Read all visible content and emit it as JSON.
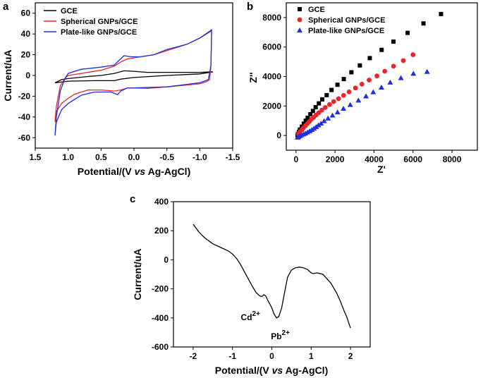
{
  "chart_data": [
    {
      "panel": "a",
      "type": "line",
      "xlabel_pre": "Potential/(V ",
      "xlabel_vs": "vs",
      "xlabel_post": " Ag-AgCl)",
      "ylabel": "Current/uA",
      "xlim": [
        1.5,
        -1.5
      ],
      "ylim": [
        -70,
        70
      ],
      "xticks": [
        1.5,
        1.0,
        0.5,
        0.0,
        -0.5,
        -1.0,
        -1.5
      ],
      "xtick_labels": [
        "1.5",
        "1.0",
        "0.5",
        "0.0",
        "-0.5",
        "-1.0",
        "-1.5"
      ],
      "yticks": [
        -60,
        -40,
        -20,
        0,
        20,
        40,
        60
      ],
      "legend": "top-left",
      "grid": false,
      "series": [
        {
          "name": "GCE",
          "color": "#000000",
          "points": [
            [
              1.2,
              -7
            ],
            [
              1.1,
              -4
            ],
            [
              1.0,
              -3
            ],
            [
              0.7,
              -1
            ],
            [
              0.5,
              0
            ],
            [
              0.3,
              2
            ],
            [
              0.15,
              4.5
            ],
            [
              0.0,
              4
            ],
            [
              -0.2,
              3
            ],
            [
              -0.5,
              3
            ],
            [
              -1.0,
              3
            ],
            [
              -1.2,
              3.5
            ],
            [
              -1.0,
              1.5
            ],
            [
              -0.5,
              0
            ],
            [
              0.0,
              -2
            ],
            [
              0.2,
              -3.5
            ],
            [
              0.3,
              -5
            ],
            [
              0.6,
              -5
            ],
            [
              1.0,
              -5.5
            ],
            [
              1.2,
              -7
            ]
          ]
        },
        {
          "name": "Spherical GNPs/GCE",
          "color": "#e8252b",
          "points": [
            [
              1.2,
              -45
            ],
            [
              1.18,
              -30
            ],
            [
              1.12,
              -10
            ],
            [
              1.05,
              -3
            ],
            [
              1.0,
              0
            ],
            [
              0.8,
              2
            ],
            [
              0.5,
              5
            ],
            [
              0.3,
              9
            ],
            [
              0.2,
              13
            ],
            [
              0.1,
              16
            ],
            [
              0.0,
              17
            ],
            [
              -0.2,
              19
            ],
            [
              -0.3,
              20
            ],
            [
              -0.5,
              24
            ],
            [
              -0.8,
              30
            ],
            [
              -1.0,
              36
            ],
            [
              -1.18,
              43
            ],
            [
              -1.17,
              10
            ],
            [
              -1.15,
              -4
            ],
            [
              -1.1,
              -6
            ],
            [
              -1.0,
              -8
            ],
            [
              -0.5,
              -11
            ],
            [
              -0.2,
              -12.5
            ],
            [
              0.0,
              -12
            ],
            [
              0.1,
              -12
            ],
            [
              0.2,
              -14
            ],
            [
              0.3,
              -15
            ],
            [
              0.5,
              -14
            ],
            [
              0.7,
              -14
            ],
            [
              0.9,
              -18
            ],
            [
              1.0,
              -22
            ],
            [
              1.1,
              -27
            ],
            [
              1.18,
              -35
            ],
            [
              1.2,
              -45
            ]
          ]
        },
        {
          "name": "Plate-like GNPs/GCE",
          "color": "#1f2ee0",
          "points": [
            [
              1.2,
              -58
            ],
            [
              1.18,
              -40
            ],
            [
              1.12,
              -15
            ],
            [
              1.05,
              -3
            ],
            [
              1.0,
              2
            ],
            [
              0.8,
              6
            ],
            [
              0.5,
              8
            ],
            [
              0.3,
              10
            ],
            [
              0.22,
              15
            ],
            [
              0.15,
              19
            ],
            [
              0.05,
              18
            ],
            [
              -0.1,
              18
            ],
            [
              -0.3,
              20
            ],
            [
              -0.5,
              25
            ],
            [
              -0.8,
              30
            ],
            [
              -1.0,
              36
            ],
            [
              -1.18,
              44
            ],
            [
              -1.17,
              10
            ],
            [
              -1.13,
              -4
            ],
            [
              -1.0,
              -7
            ],
            [
              -0.5,
              -11
            ],
            [
              0.0,
              -12
            ],
            [
              0.1,
              -12
            ],
            [
              0.2,
              -15
            ],
            [
              0.25,
              -18.5
            ],
            [
              0.35,
              -16
            ],
            [
              0.6,
              -16
            ],
            [
              0.8,
              -19
            ],
            [
              1.0,
              -27
            ],
            [
              1.1,
              -33
            ],
            [
              1.18,
              -45
            ],
            [
              1.2,
              -58
            ]
          ]
        }
      ]
    },
    {
      "panel": "b",
      "type": "scatter",
      "xlabel": "Z'",
      "ylabel": "Z''",
      "xlim": [
        -500,
        9300
      ],
      "ylim": [
        -1000,
        9000
      ],
      "xticks": [
        0,
        2000,
        4000,
        6000,
        8000
      ],
      "yticks": [
        0,
        2000,
        4000,
        6000,
        8000
      ],
      "legend": "top-left",
      "grid": false,
      "series": [
        {
          "name": "GCE",
          "color": "#000000",
          "marker": "square",
          "points": [
            [
              80,
              0
            ],
            [
              100,
              100
            ],
            [
              150,
              250
            ],
            [
              200,
              400
            ],
            [
              300,
              600
            ],
            [
              400,
              800
            ],
            [
              500,
              1000
            ],
            [
              600,
              1200
            ],
            [
              737,
              1440
            ],
            [
              867,
              1664
            ],
            [
              1008,
              1920
            ],
            [
              1171,
              2176
            ],
            [
              1344,
              2448
            ],
            [
              1572,
              2736
            ],
            [
              1821,
              3088
            ],
            [
              2125,
              3440
            ],
            [
              2450,
              3824
            ],
            [
              2840,
              4288
            ],
            [
              3274,
              4752
            ],
            [
              3783,
              5248
            ],
            [
              4390,
              5808
            ],
            [
              4997,
              6368
            ],
            [
              5724,
              6960
            ],
            [
              6537,
              7600
            ],
            [
              7436,
              8240
            ]
          ]
        },
        {
          "name": "Spherical GNPs/GCE",
          "color": "#e8252b",
          "marker": "circle",
          "points": [
            [
              120,
              100
            ],
            [
              200,
              240
            ],
            [
              300,
              380
            ],
            [
              380,
              520
            ],
            [
              480,
              660
            ],
            [
              580,
              800
            ],
            [
              680,
              940
            ],
            [
              780,
              1080
            ],
            [
              900,
              1220
            ],
            [
              1020,
              1380
            ],
            [
              1160,
              1540
            ],
            [
              1320,
              1720
            ],
            [
              1500,
              1900
            ],
            [
              1720,
              2100
            ],
            [
              1930,
              2300
            ],
            [
              2180,
              2500
            ],
            [
              2440,
              2720
            ],
            [
              2720,
              2960
            ],
            [
              3050,
              3220
            ],
            [
              3380,
              3480
            ],
            [
              3750,
              3760
            ],
            [
              4150,
              4040
            ],
            [
              4550,
              4360
            ],
            [
              5000,
              4700
            ],
            [
              5500,
              5080
            ],
            [
              6000,
              5480
            ]
          ]
        },
        {
          "name": "Plate-like GNPs/GCE",
          "color": "#1f2ee0",
          "marker": "triangle",
          "points": [
            [
              80,
              -130
            ],
            [
              120,
              -100
            ],
            [
              190,
              -40
            ],
            [
              280,
              20
            ],
            [
              380,
              80
            ],
            [
              480,
              140
            ],
            [
              590,
              220
            ],
            [
              700,
              300
            ],
            [
              810,
              390
            ],
            [
              920,
              480
            ],
            [
              1030,
              580
            ],
            [
              1150,
              700
            ],
            [
              1280,
              820
            ],
            [
              1440,
              980
            ],
            [
              1640,
              1160
            ],
            [
              1870,
              1360
            ],
            [
              2130,
              1580
            ],
            [
              2430,
              1820
            ],
            [
              2780,
              2080
            ],
            [
              3200,
              2380
            ],
            [
              3590,
              2660
            ],
            [
              3960,
              2940
            ],
            [
              4380,
              3260
            ],
            [
              4830,
              3600
            ],
            [
              5380,
              3900
            ],
            [
              6020,
              4200
            ],
            [
              6720,
              4320
            ]
          ]
        }
      ]
    },
    {
      "panel": "c",
      "type": "line",
      "xlabel_pre": "Potential/(V ",
      "xlabel_vs": "vs",
      "xlabel_post": " Ag-AgCl)",
      "ylabel": "Current/uA",
      "xlim": [
        -2.5,
        2.5
      ],
      "ylim": [
        -600,
        400
      ],
      "xticks": [
        -2,
        -1,
        0,
        1,
        2
      ],
      "yticks": [
        -600,
        -400,
        -200,
        0,
        200,
        400
      ],
      "grid": false,
      "annotations": [
        {
          "base": "Cd",
          "sup": "2+",
          "at": [
            -0.25,
            -250
          ]
        },
        {
          "base": "Pb",
          "sup": "2+",
          "at": [
            0.12,
            -400
          ]
        }
      ],
      "series": [
        {
          "color": "#000000",
          "points": [
            [
              -2,
              245
            ],
            [
              -1.85,
              190
            ],
            [
              -1.7,
              150
            ],
            [
              -1.5,
              110
            ],
            [
              -1.3,
              85
            ],
            [
              -1.1,
              60
            ],
            [
              -1.0,
              40
            ],
            [
              -0.9,
              10
            ],
            [
              -0.8,
              -30
            ],
            [
              -0.7,
              -80
            ],
            [
              -0.6,
              -130
            ],
            [
              -0.5,
              -180
            ],
            [
              -0.4,
              -225
            ],
            [
              -0.3,
              -250
            ],
            [
              -0.25,
              -252
            ],
            [
              -0.2,
              -240
            ],
            [
              -0.15,
              -250
            ],
            [
              -0.1,
              -280
            ],
            [
              0.0,
              -330
            ],
            [
              0.05,
              -370
            ],
            [
              0.12,
              -400
            ],
            [
              0.18,
              -390
            ],
            [
              0.25,
              -330
            ],
            [
              0.32,
              -230
            ],
            [
              0.4,
              -120
            ],
            [
              0.5,
              -70
            ],
            [
              0.6,
              -55
            ],
            [
              0.7,
              -50
            ],
            [
              0.8,
              -55
            ],
            [
              0.9,
              -65
            ],
            [
              1.0,
              -90
            ],
            [
              1.05,
              -95
            ],
            [
              1.15,
              -90
            ],
            [
              1.3,
              -100
            ],
            [
              1.5,
              -160
            ],
            [
              1.65,
              -230
            ],
            [
              1.75,
              -290
            ],
            [
              1.85,
              -360
            ],
            [
              1.9,
              -390
            ],
            [
              2.0,
              -470
            ]
          ]
        }
      ]
    }
  ]
}
